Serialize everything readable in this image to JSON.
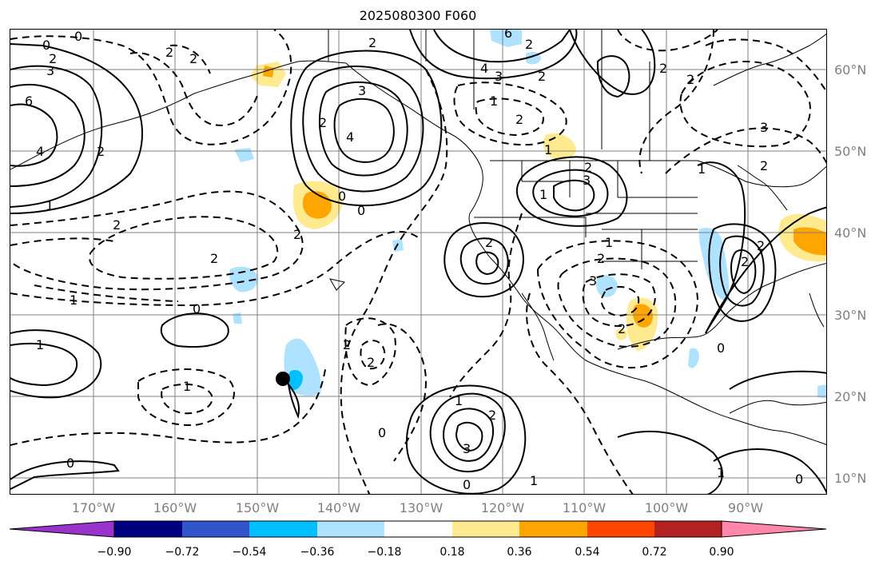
{
  "title": "2025080300 F060",
  "lat_labels": [
    "60°N",
    "50°N",
    "40°N",
    "30°N",
    "20°N",
    "10°N"
  ],
  "lon_labels": [
    "170°W",
    "160°W",
    "150°W",
    "140°W",
    "130°W",
    "120°W",
    "110°W",
    "100°W",
    "90°W"
  ],
  "colorbar": {
    "ticks": [
      "−0.90",
      "−0.72",
      "−0.54",
      "−0.36",
      "−0.18",
      "0.18",
      "0.36",
      "0.54",
      "0.72",
      "0.90"
    ],
    "colors": [
      "#9933cc",
      "#000080",
      "#3355cc",
      "#00bfff",
      "#aee2ff",
      "#ffffff",
      "#ffea8f",
      "#ffa500",
      "#ff4500",
      "#b22222",
      "#ff88aa"
    ]
  },
  "contour_labels": {
    "solid": [
      "0",
      "3",
      "2",
      "6",
      "4",
      "2",
      "1",
      "3",
      "4",
      "2",
      "6",
      "4",
      "3",
      "2",
      "2",
      "1",
      "3",
      "2",
      "2",
      "1",
      "0",
      "2",
      "1",
      "0",
      "0",
      "1",
      "3",
      "0",
      "1",
      "0",
      "3",
      "0"
    ],
    "dashed": [
      "0",
      "2",
      "2",
      "2",
      "2",
      "1",
      "2",
      "2",
      "2",
      "1",
      "2",
      "2",
      "2",
      "1",
      "2",
      "2",
      "3",
      "1",
      "2",
      "2",
      "1",
      "2",
      "1",
      "2",
      "0",
      "0"
    ]
  },
  "colors": {
    "line": "#000000",
    "grid": "#808080",
    "positive_fill": "#ffea8f",
    "positive_fill_strong": "#ffa500",
    "negative_fill": "#aee2ff",
    "negative_fill_strong": "#00bfff"
  }
}
